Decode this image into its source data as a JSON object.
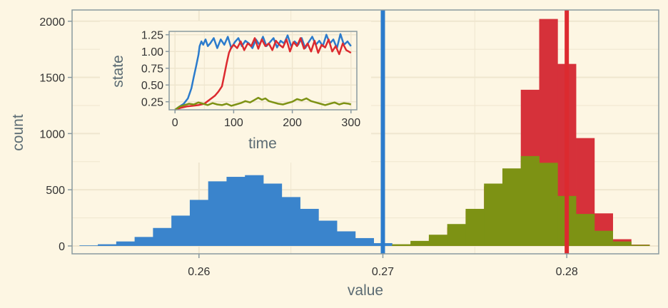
{
  "chart_data": [
    {
      "type": "histogram",
      "xlabel": "value",
      "ylabel": "count",
      "xlim": [
        0.2531,
        0.285
      ],
      "ylim": [
        -70,
        2100
      ],
      "xticks": [
        0.26,
        0.27,
        0.28
      ],
      "xtick_labels": [
        "0.26",
        "0.27",
        "0.28"
      ],
      "yticks": [
        0,
        500,
        1000,
        1500,
        2000
      ],
      "ytick_labels": [
        "0",
        "500",
        "1000",
        "1500",
        "2000"
      ],
      "grid": true,
      "vlines": [
        {
          "x": 0.27,
          "color": "#2b7bcc"
        },
        {
          "x": 0.28,
          "color": "#dc2a2f"
        }
      ],
      "series": [
        {
          "color": "#3a84cc",
          "bin_start": 0.2535,
          "bin_width": 0.001,
          "counts": [
            5,
            15,
            40,
            80,
            160,
            270,
            410,
            575,
            615,
            630,
            555,
            435,
            330,
            225,
            130,
            70,
            25
          ]
        },
        {
          "color": "#d6313a",
          "bin_start": 0.2705,
          "bin_width": 0.001,
          "counts": [
            3,
            18,
            65,
            165,
            310,
            530,
            680,
            1390,
            2020,
            1620,
            960,
            290,
            60,
            12
          ]
        },
        {
          "color": "#7d9214",
          "bin_start": 0.2705,
          "bin_width": 0.001,
          "counts": [
            15,
            45,
            100,
            195,
            330,
            555,
            690,
            800,
            740,
            445,
            285,
            135,
            40,
            10
          ]
        }
      ]
    },
    {
      "type": "line",
      "inset": true,
      "xlabel": "time",
      "ylabel": "state",
      "xlim": [
        -10,
        310
      ],
      "ylim": [
        0.13,
        1.3
      ],
      "xticks": [
        0,
        100,
        200,
        300
      ],
      "xtick_labels": [
        "0",
        "100",
        "200",
        "300"
      ],
      "yticks": [
        0.25,
        0.5,
        0.75,
        1.0,
        1.25
      ],
      "ytick_labels": [
        "0.25",
        "0.50",
        "0.75",
        "1.00",
        "1.25"
      ],
      "grid": true,
      "series": [
        {
          "color": "#2b7bcc",
          "x": [
            0,
            8,
            15,
            22,
            28,
            32,
            36,
            40,
            42,
            45,
            48,
            52,
            56,
            60,
            66,
            72,
            78,
            84,
            90,
            96,
            102,
            108,
            114,
            120,
            126,
            132,
            138,
            144,
            150,
            156,
            162,
            168,
            174,
            180,
            186,
            192,
            198,
            204,
            210,
            216,
            222,
            228,
            234,
            240,
            246,
            252,
            258,
            264,
            270,
            276,
            282,
            288,
            294,
            300
          ],
          "y": [
            0.13,
            0.18,
            0.22,
            0.3,
            0.45,
            0.62,
            0.78,
            0.95,
            1.08,
            1.15,
            1.1,
            1.18,
            1.08,
            1.12,
            1.2,
            1.05,
            1.18,
            1.1,
            1.22,
            1.05,
            1.14,
            1.2,
            1.08,
            1.16,
            1.12,
            1.05,
            1.18,
            1.1,
            1.22,
            1.08,
            1.14,
            1.2,
            1.06,
            1.16,
            1.12,
            1.24,
            1.08,
            1.15,
            1.1,
            1.2,
            1.05,
            1.14,
            1.22,
            1.1,
            1.16,
            1.08,
            1.25,
            1.12,
            1.18,
            1.05,
            1.26,
            1.1,
            1.15,
            1.08
          ]
        },
        {
          "color": "#dc2a2f",
          "x": [
            0,
            10,
            20,
            30,
            40,
            50,
            56,
            62,
            68,
            74,
            80,
            84,
            88,
            92,
            96,
            100,
            106,
            112,
            118,
            124,
            130,
            136,
            142,
            148,
            154,
            160,
            166,
            172,
            178,
            184,
            190,
            196,
            202,
            208,
            214,
            220,
            226,
            232,
            238,
            244,
            250,
            256,
            262,
            268,
            274,
            280,
            286,
            292,
            300
          ],
          "y": [
            0.13,
            0.16,
            0.18,
            0.19,
            0.2,
            0.22,
            0.26,
            0.3,
            0.34,
            0.4,
            0.48,
            0.65,
            0.82,
            0.98,
            1.06,
            1.1,
            1.05,
            1.15,
            1.02,
            1.12,
            1.08,
            1.2,
            1.04,
            1.18,
            1.08,
            1.12,
            1.02,
            1.16,
            1.1,
            1.06,
            1.18,
            1.0,
            1.14,
            1.08,
            1.2,
            1.04,
            1.12,
            1.0,
            1.16,
            0.98,
            1.1,
            1.06,
            1.18,
            1.0,
            1.08,
            0.96,
            1.12,
            1.02,
            0.98
          ]
        },
        {
          "color": "#7d9214",
          "x": [
            0,
            8,
            16,
            24,
            32,
            40,
            48,
            56,
            64,
            72,
            80,
            88,
            96,
            104,
            112,
            120,
            128,
            136,
            142,
            148,
            154,
            160,
            168,
            176,
            184,
            192,
            200,
            208,
            216,
            224,
            232,
            240,
            248,
            256,
            264,
            272,
            280,
            288,
            296,
            300
          ],
          "y": [
            0.13,
            0.18,
            0.2,
            0.22,
            0.21,
            0.24,
            0.22,
            0.2,
            0.23,
            0.21,
            0.2,
            0.22,
            0.19,
            0.21,
            0.23,
            0.26,
            0.24,
            0.28,
            0.31,
            0.28,
            0.3,
            0.26,
            0.24,
            0.22,
            0.21,
            0.23,
            0.25,
            0.29,
            0.27,
            0.3,
            0.26,
            0.24,
            0.22,
            0.2,
            0.22,
            0.24,
            0.21,
            0.23,
            0.22,
            0.21
          ]
        }
      ]
    }
  ]
}
